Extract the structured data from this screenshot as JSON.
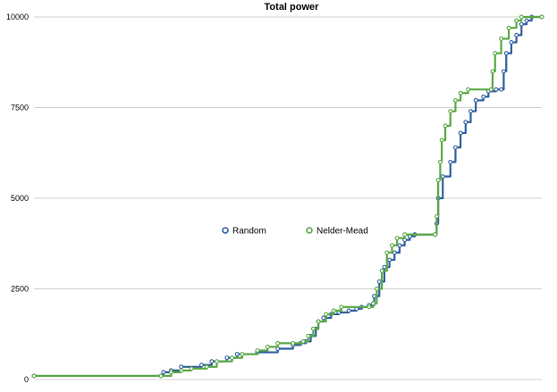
{
  "chart_data": {
    "type": "line",
    "title": "Total power",
    "xlabel": "",
    "ylabel": "",
    "xlim": [
      0,
      100
    ],
    "ylim": [
      0,
      10000
    ],
    "y_ticks": [
      0,
      2500,
      5000,
      7500,
      10000
    ],
    "grid": true,
    "legend_position": "center",
    "series": [
      {
        "name": "Random",
        "color": "#2f5f9e",
        "points": [
          [
            0,
            100
          ],
          [
            25,
            100
          ],
          [
            25.5,
            200
          ],
          [
            27,
            250
          ],
          [
            29,
            350
          ],
          [
            33,
            400
          ],
          [
            35,
            500
          ],
          [
            38,
            600
          ],
          [
            40,
            700
          ],
          [
            44,
            750
          ],
          [
            48,
            850
          ],
          [
            51,
            950
          ],
          [
            52.5,
            1000
          ],
          [
            53.5,
            1050
          ],
          [
            54.5,
            1200
          ],
          [
            55.5,
            1400
          ],
          [
            56,
            1600
          ],
          [
            57,
            1700
          ],
          [
            58.5,
            1800
          ],
          [
            60,
            1850
          ],
          [
            62,
            1900
          ],
          [
            63.5,
            1950
          ],
          [
            64.5,
            2000
          ],
          [
            66,
            2050
          ],
          [
            67,
            2300
          ],
          [
            68,
            2700
          ],
          [
            69,
            3100
          ],
          [
            70,
            3300
          ],
          [
            71,
            3500
          ],
          [
            72,
            3700
          ],
          [
            73,
            3850
          ],
          [
            74,
            3950
          ],
          [
            75,
            4000
          ],
          [
            79,
            4000
          ],
          [
            79.3,
            4300
          ],
          [
            79.6,
            5000
          ],
          [
            80.5,
            5600
          ],
          [
            82,
            6000
          ],
          [
            83,
            6400
          ],
          [
            84,
            6800
          ],
          [
            85,
            7100
          ],
          [
            86,
            7400
          ],
          [
            87,
            7700
          ],
          [
            88.5,
            7800
          ],
          [
            89.5,
            7950
          ],
          [
            91,
            8000
          ],
          [
            92,
            8000
          ],
          [
            92.5,
            8500
          ],
          [
            93,
            9000
          ],
          [
            94,
            9300
          ],
          [
            95,
            9500
          ],
          [
            96,
            9800
          ],
          [
            97,
            9900
          ],
          [
            98,
            10000
          ],
          [
            100,
            10000
          ]
        ]
      },
      {
        "name": "Nelder-Mead",
        "color": "#5aa845",
        "points": [
          [
            0,
            100
          ],
          [
            25,
            100
          ],
          [
            27,
            200
          ],
          [
            29,
            250
          ],
          [
            31,
            300
          ],
          [
            34,
            350
          ],
          [
            36,
            500
          ],
          [
            39,
            600
          ],
          [
            41,
            700
          ],
          [
            44,
            800
          ],
          [
            46,
            900
          ],
          [
            48,
            1000
          ],
          [
            51,
            1000
          ],
          [
            53,
            1050
          ],
          [
            54,
            1200
          ],
          [
            55,
            1400
          ],
          [
            56,
            1600
          ],
          [
            57.5,
            1800
          ],
          [
            59,
            1900
          ],
          [
            60.5,
            2000
          ],
          [
            66,
            2000
          ],
          [
            66.8,
            2100
          ],
          [
            67.5,
            2500
          ],
          [
            68.5,
            3000
          ],
          [
            69.5,
            3500
          ],
          [
            70.5,
            3700
          ],
          [
            71.5,
            3900
          ],
          [
            73,
            4000
          ],
          [
            79,
            4000
          ],
          [
            79.3,
            4500
          ],
          [
            79.6,
            5500
          ],
          [
            80,
            6000
          ],
          [
            80.3,
            6600
          ],
          [
            81,
            7000
          ],
          [
            82,
            7400
          ],
          [
            83,
            7700
          ],
          [
            84,
            7900
          ],
          [
            85.5,
            8000
          ],
          [
            90,
            8000
          ],
          [
            90.3,
            8500
          ],
          [
            90.8,
            9000
          ],
          [
            92,
            9400
          ],
          [
            93.5,
            9700
          ],
          [
            95,
            9900
          ],
          [
            96,
            10000
          ],
          [
            100,
            10000
          ]
        ]
      }
    ]
  }
}
